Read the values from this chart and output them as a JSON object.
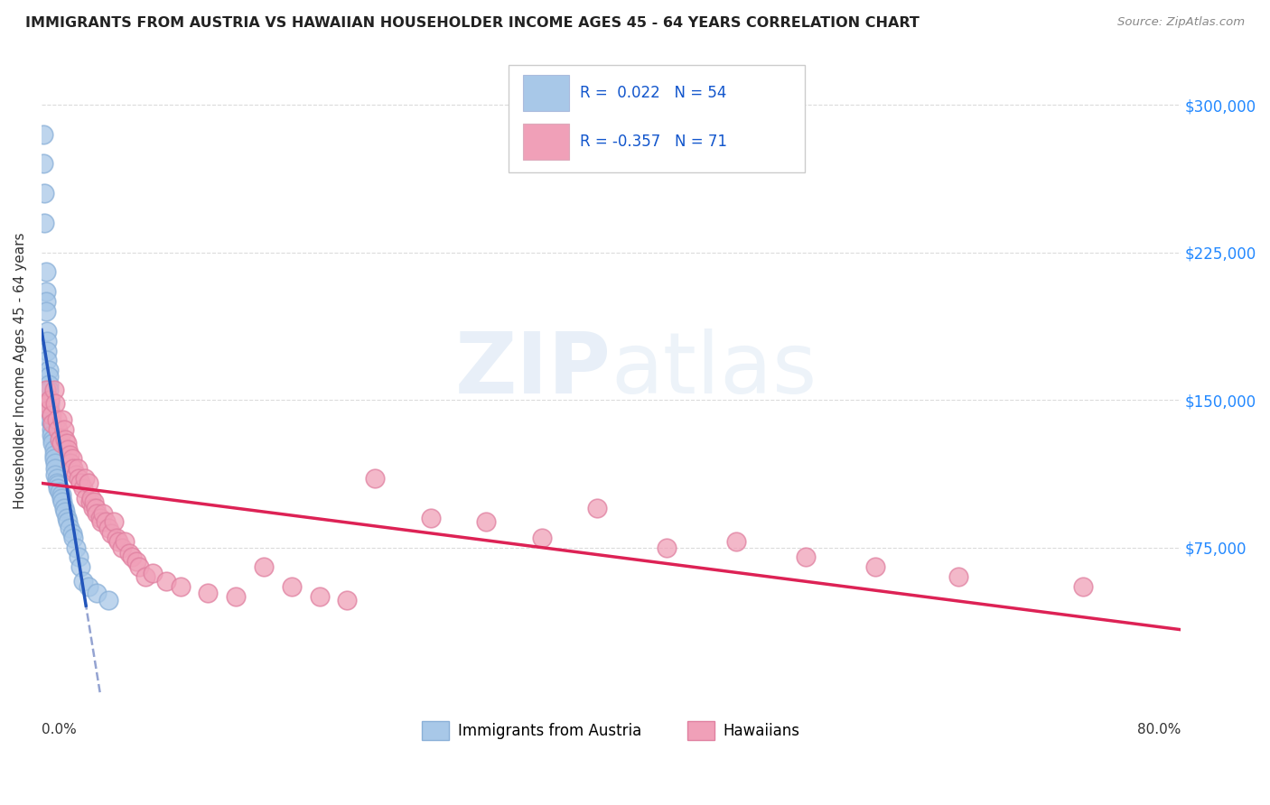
{
  "title": "IMMIGRANTS FROM AUSTRIA VS HAWAIIAN HOUSEHOLDER INCOME AGES 45 - 64 YEARS CORRELATION CHART",
  "source": "Source: ZipAtlas.com",
  "ylabel": "Householder Income Ages 45 - 64 years",
  "y_ticks": [
    75000,
    150000,
    225000,
    300000
  ],
  "y_tick_labels": [
    "$75,000",
    "$150,000",
    "$225,000",
    "$300,000"
  ],
  "legend_label1": "Immigrants from Austria",
  "legend_label2": "Hawaiians",
  "r1": "0.022",
  "n1": "54",
  "r2": "-0.357",
  "n2": "71",
  "blue_color": "#a8c8e8",
  "pink_color": "#f0a0b8",
  "blue_line_color": "#2255bb",
  "pink_line_color": "#dd2255",
  "watermark": "ZIPatlas",
  "xlim": [
    0.0,
    0.82
  ],
  "ylim": [
    0,
    330000
  ],
  "blue_x": [
    0.001,
    0.001,
    0.002,
    0.002,
    0.003,
    0.003,
    0.003,
    0.003,
    0.004,
    0.004,
    0.004,
    0.004,
    0.005,
    0.005,
    0.005,
    0.005,
    0.006,
    0.006,
    0.006,
    0.006,
    0.006,
    0.007,
    0.007,
    0.007,
    0.008,
    0.008,
    0.009,
    0.009,
    0.009,
    0.01,
    0.01,
    0.01,
    0.011,
    0.011,
    0.012,
    0.012,
    0.013,
    0.014,
    0.014,
    0.015,
    0.016,
    0.017,
    0.018,
    0.019,
    0.02,
    0.022,
    0.023,
    0.025,
    0.027,
    0.028,
    0.03,
    0.034,
    0.04,
    0.048
  ],
  "blue_y": [
    285000,
    270000,
    255000,
    240000,
    215000,
    205000,
    200000,
    195000,
    185000,
    180000,
    175000,
    170000,
    165000,
    162000,
    158000,
    155000,
    150000,
    148000,
    145000,
    143000,
    140000,
    138000,
    135000,
    132000,
    130000,
    128000,
    125000,
    122000,
    120000,
    118000,
    115000,
    112000,
    110000,
    108000,
    107000,
    105000,
    103000,
    102000,
    100000,
    98000,
    95000,
    93000,
    90000,
    88000,
    85000,
    82000,
    80000,
    75000,
    70000,
    65000,
    58000,
    55000,
    52000,
    48000
  ],
  "pink_x": [
    0.003,
    0.004,
    0.005,
    0.006,
    0.007,
    0.008,
    0.009,
    0.01,
    0.011,
    0.012,
    0.013,
    0.014,
    0.015,
    0.016,
    0.017,
    0.018,
    0.019,
    0.02,
    0.021,
    0.022,
    0.023,
    0.025,
    0.026,
    0.027,
    0.028,
    0.03,
    0.031,
    0.032,
    0.034,
    0.035,
    0.036,
    0.037,
    0.038,
    0.039,
    0.04,
    0.042,
    0.043,
    0.044,
    0.046,
    0.048,
    0.05,
    0.052,
    0.054,
    0.055,
    0.058,
    0.06,
    0.063,
    0.065,
    0.068,
    0.07,
    0.075,
    0.08,
    0.09,
    0.1,
    0.12,
    0.14,
    0.16,
    0.18,
    0.2,
    0.22,
    0.24,
    0.28,
    0.32,
    0.36,
    0.4,
    0.45,
    0.5,
    0.55,
    0.6,
    0.66,
    0.75
  ],
  "pink_y": [
    155000,
    148000,
    145000,
    150000,
    142000,
    138000,
    155000,
    148000,
    140000,
    135000,
    130000,
    128000,
    140000,
    135000,
    130000,
    128000,
    125000,
    122000,
    118000,
    120000,
    115000,
    112000,
    115000,
    110000,
    108000,
    105000,
    110000,
    100000,
    108000,
    98000,
    100000,
    95000,
    98000,
    95000,
    92000,
    90000,
    88000,
    92000,
    88000,
    85000,
    82000,
    88000,
    80000,
    78000,
    75000,
    78000,
    72000,
    70000,
    68000,
    65000,
    60000,
    62000,
    58000,
    55000,
    52000,
    50000,
    65000,
    55000,
    50000,
    48000,
    110000,
    90000,
    88000,
    80000,
    95000,
    75000,
    78000,
    70000,
    65000,
    60000,
    55000
  ]
}
